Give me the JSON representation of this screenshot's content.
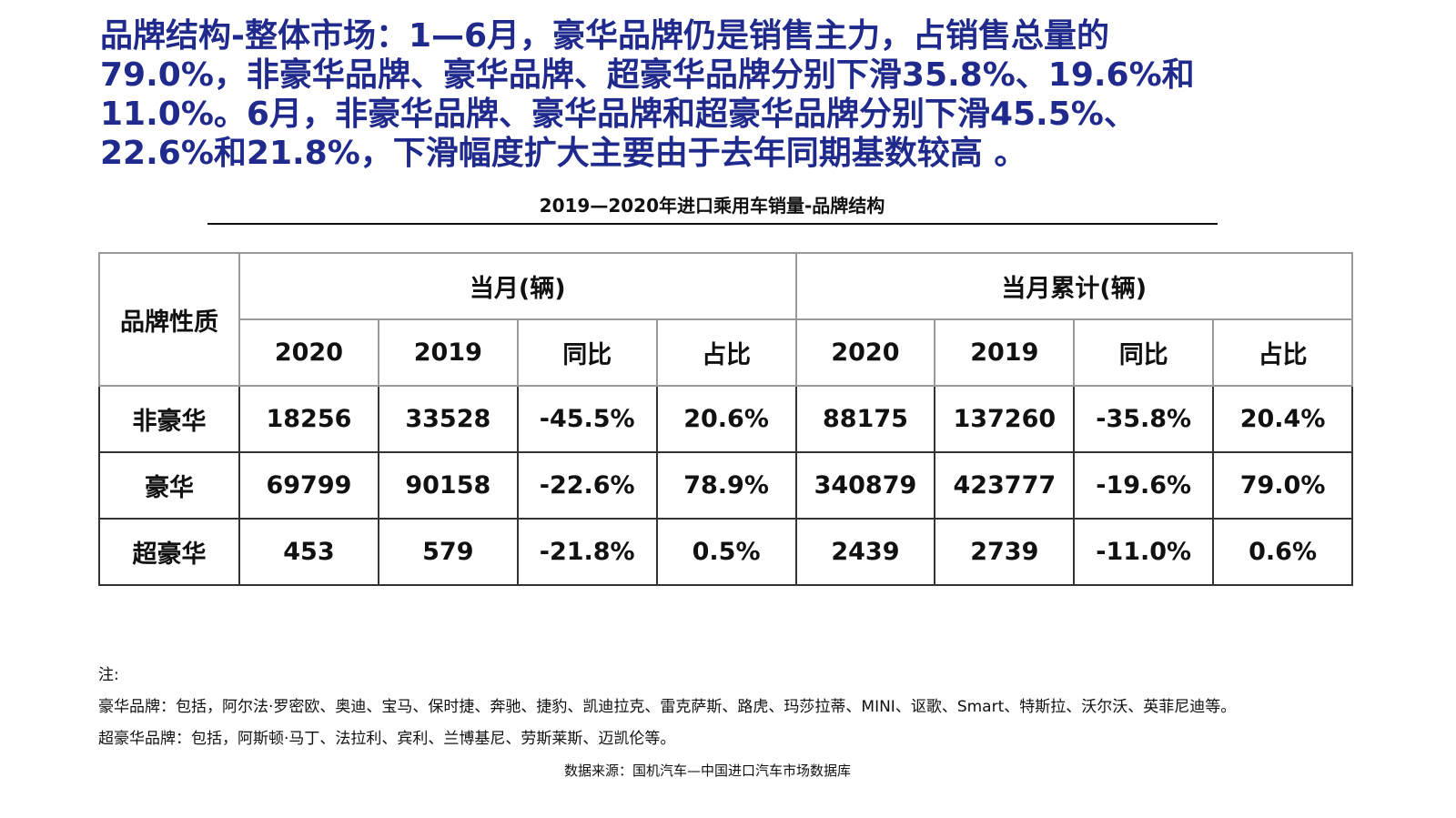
{
  "headline_lines": [
    "品牌结构-整体市场：1—6月，豪华品牌仍是销售主力，占销售总量的",
    "79.0%，非豪华品牌、豪华品牌、超豪华品牌分别下滑35.8%、19.6%和",
    "11.0%。6月，非豪华品牌、豪华品牌和超豪华品牌分别下滑45.5%、",
    "22.6%和21.8%，下滑幅度扩大主要由于去年同期基数较高 。"
  ],
  "table_title": "2019—2020年进口乘用车销量-品牌结构",
  "colors": {
    "headline": "#1f2a8c"
  },
  "table": {
    "row_header": "品牌性质",
    "group_headers": [
      "当月(辆)",
      "当月累计(辆)"
    ],
    "sub_headers": [
      "2020",
      "2019",
      "同比",
      "占比",
      "2020",
      "2019",
      "同比",
      "占比"
    ],
    "rows": [
      {
        "label": "非豪华",
        "values": [
          "18256",
          "33528",
          "-45.5%",
          "20.6%",
          "88175",
          "137260",
          "-35.8%",
          "20.4%"
        ]
      },
      {
        "label": "豪华",
        "values": [
          "69799",
          "90158",
          "-22.6%",
          "78.9%",
          "340879",
          "423777",
          "-19.6%",
          "79.0%"
        ]
      },
      {
        "label": "超豪华",
        "values": [
          "453",
          "579",
          "-21.8%",
          "0.5%",
          "2439",
          "2739",
          "-11.0%",
          "0.6%"
        ]
      }
    ]
  },
  "notes": {
    "label": "注:",
    "lines": [
      "豪华品牌：包括，阿尔法·罗密欧、奥迪、宝马、保时捷、奔驰、捷豹、凯迪拉克、雷克萨斯、路虎、玛莎拉蒂、MINI、讴歌、Smart、特斯拉、沃尔沃、英菲尼迪等。",
      "超豪华品牌：包括，阿斯顿·马丁、法拉利、宾利、兰博基尼、劳斯莱斯、迈凯伦等。"
    ]
  },
  "source": "数据来源：国机汽车—中国进口汽车市场数据库"
}
